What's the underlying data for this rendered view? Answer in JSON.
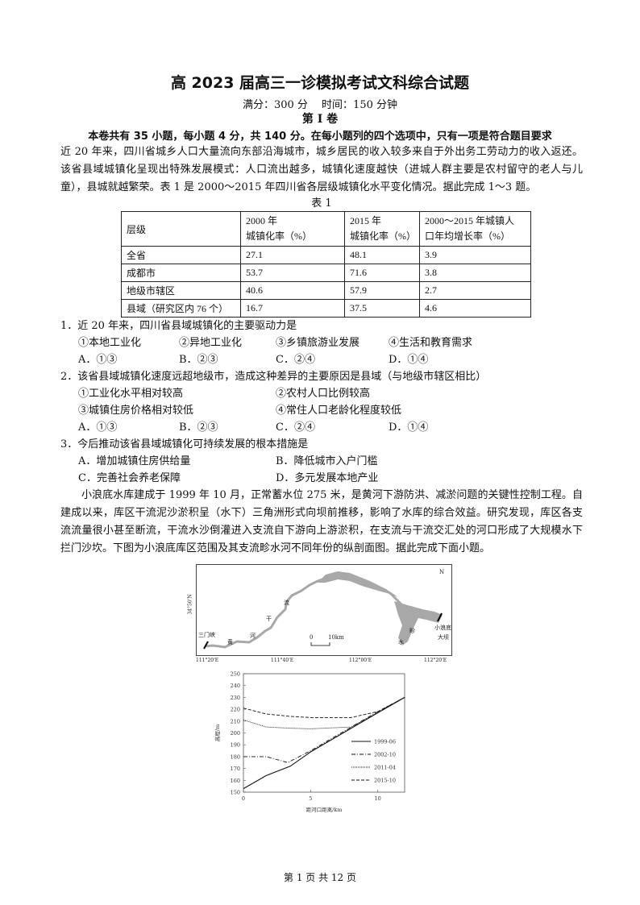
{
  "header": {
    "title": "高 2023 届高三一诊模拟考试文科综合试题",
    "score_time": "满分：300 分　 时间：150 分钟",
    "volume": "第 I 卷",
    "instructions": "本卷共有 35 小题，每小题 4 分，共 140 分。在每小题列的四个选项中，只有一项是符合题目要求"
  },
  "passage1": "近 20 年来，四川省城乡人口大量流向东部沿海城市，城乡居民的收入较多来自于外出务工劳动力的收入返还。该省县域城镇化呈现出特殊发展模式：人口流出越多，城镇化速度越快（进城人群主要是农村留守的老人与儿童），县城就越繁荣。表 1 是 2000～2015 年四川省各层级城镇化水平变化情况。据此完成 1～3 题。",
  "table1": {
    "caption": "表 1",
    "headers": [
      "层级",
      "2000 年\n城镇化率（%）",
      "2015 年\n城镇化率（%）",
      "2000～2015 年城镇人\n口年均增长率（%）"
    ],
    "rows": [
      [
        "全省",
        "27.1",
        "48.1",
        "3.9"
      ],
      [
        "成都市",
        "53.7",
        "71.6",
        "3.8"
      ],
      [
        "地级市辖区",
        "40.6",
        "57.9",
        "2.7"
      ],
      [
        "县域（研究区内 76 个）",
        "16.7",
        "37.5",
        "4.6"
      ]
    ]
  },
  "questions": [
    {
      "stem": "1．近 20 年来，四川省县域城镇化的主要驱动力是",
      "items": [
        "①本地工业化",
        "②异地工业化",
        "③乡镇旅游业发展",
        "④生活和教育需求"
      ],
      "options": [
        "A．①③",
        "B．②③",
        "C．②④",
        "D．①④"
      ]
    },
    {
      "stem": "2．该省县域城镇化速度远超地级市，造成这种差异的主要原因是县域（与地级市辖区相比）",
      "items": [
        "①工业化水平相对较高",
        "②农村人口比例较高",
        "③城镇住房价格相对较低",
        "④常住人口老龄化程度较低"
      ],
      "options": [
        "A．①③",
        "B．②③",
        "C．②④",
        "D．①④"
      ]
    },
    {
      "stem": "3．今后推动该省县域城镇化可持续发展的根本措施是",
      "items": [],
      "options": [
        "A．增加城镇住房供给量",
        "B．降低城市入户门槛",
        "C．完善社会养老保障",
        "D．多元发展本地产业"
      ]
    }
  ],
  "passage2": "小浪底水库建成于 1999 年 10 月，正常蓄水位 275 米，是黄河下游防洪、减淤问题的关键性控制工程。自建成以来，库区干流泥沙淤积呈（水下）三角洲形式向坝前推移，影响了水库的综合效益。研究发现，库区各支流流量很小甚至断流，干流水沙倒灌进入支流自下游向上游淤积，在支流与干流交汇处的河口形成了大规模水下拦门沙坎。下图为小浪底库区范围及其支流畛水河不同年份的纵剖面图。据此完成下面小题。",
  "map": {
    "labels": {
      "sanmenxia": "三门峡",
      "huang": "黄",
      "he": "河",
      "gan": "干",
      "liu": "流",
      "zhen": "畛",
      "shui": "水",
      "dam1": "小浪底",
      "dam2": "大坝",
      "north": "N",
      "scale0": "0",
      "scale10": "10km",
      "lat": "34°50'N"
    },
    "lon_ticks": [
      "111°20'E",
      "111°40'E",
      "112°00'E",
      "112°20'E"
    ],
    "reservoir_color": "#a8a8a8"
  },
  "chart_data": {
    "type": "line",
    "xlabel": "距河口距离/km",
    "ylabel": "高程/m",
    "xlim": [
      0,
      12
    ],
    "ylim": [
      150,
      250
    ],
    "xticks": [
      0,
      5,
      10
    ],
    "yticks": [
      150,
      160,
      170,
      180,
      190,
      200,
      210,
      220,
      230,
      240,
      250
    ],
    "legend": "right",
    "series": [
      {
        "name": "1999-06",
        "style": "solid",
        "points": [
          [
            0,
            153
          ],
          [
            1.7,
            164
          ],
          [
            3.5,
            172
          ],
          [
            5,
            184
          ],
          [
            10,
            217
          ],
          [
            12,
            230
          ]
        ]
      },
      {
        "name": "2002-10",
        "style": "dashdot",
        "points": [
          [
            0,
            180
          ],
          [
            1.7,
            180
          ],
          [
            3.3,
            175
          ],
          [
            5,
            185
          ],
          [
            10,
            218
          ],
          [
            12,
            230
          ]
        ]
      },
      {
        "name": "2011-04",
        "style": "dotted",
        "points": [
          [
            0,
            211
          ],
          [
            1.7,
            205
          ],
          [
            3.5,
            204
          ],
          [
            5,
            203.5
          ],
          [
            8,
            205
          ],
          [
            10,
            217
          ],
          [
            12,
            230
          ]
        ]
      },
      {
        "name": "2015-10",
        "style": "dashed",
        "points": [
          [
            0,
            221
          ],
          [
            1.7,
            216
          ],
          [
            3.5,
            214
          ],
          [
            5,
            213
          ],
          [
            8,
            213
          ],
          [
            10,
            218
          ],
          [
            12,
            230
          ]
        ]
      }
    ]
  },
  "footer": "第 1 页 共 12 页"
}
